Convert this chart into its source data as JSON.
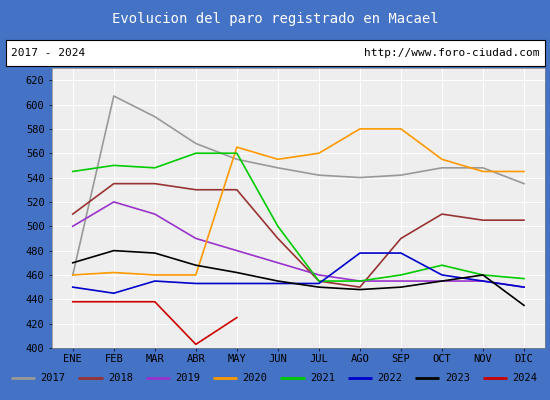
{
  "title": "Evolucion del paro registrado en Macael",
  "title_bgcolor": "#5b9bd5",
  "title_color": "white",
  "subtitle_left": "2017 - 2024",
  "subtitle_right": "http://www.foro-ciudad.com",
  "months": [
    "ENE",
    "FEB",
    "MAR",
    "ABR",
    "MAY",
    "JUN",
    "JUL",
    "AGO",
    "SEP",
    "OCT",
    "NOV",
    "DIC"
  ],
  "ylim": [
    400,
    630
  ],
  "yticks": [
    400,
    420,
    440,
    460,
    480,
    500,
    520,
    540,
    560,
    580,
    600,
    620
  ],
  "series": {
    "2017": {
      "color": "#999999",
      "data": [
        460,
        607,
        590,
        568,
        555,
        548,
        542,
        540,
        542,
        548,
        548,
        535
      ]
    },
    "2018": {
      "color": "#993333",
      "data": [
        510,
        535,
        535,
        530,
        530,
        490,
        455,
        450,
        490,
        510,
        505,
        505
      ]
    },
    "2019": {
      "color": "#9933cc",
      "data": [
        500,
        520,
        510,
        490,
        480,
        470,
        460,
        455,
        455,
        455,
        455,
        450
      ]
    },
    "2020": {
      "color": "#ff9900",
      "data": [
        460,
        462,
        460,
        460,
        565,
        555,
        560,
        580,
        580,
        555,
        545,
        545
      ]
    },
    "2021": {
      "color": "#00cc00",
      "data": [
        545,
        550,
        548,
        560,
        560,
        500,
        455,
        455,
        460,
        468,
        460,
        457
      ]
    },
    "2022": {
      "color": "#0000cc",
      "data": [
        450,
        445,
        455,
        453,
        453,
        453,
        453,
        478,
        478,
        460,
        455,
        450
      ]
    },
    "2023": {
      "color": "#000000",
      "data": [
        470,
        480,
        478,
        468,
        462,
        455,
        450,
        448,
        450,
        455,
        460,
        435
      ]
    },
    "2024": {
      "color": "#cc0000",
      "data": [
        438,
        438,
        438,
        403,
        425,
        null,
        null,
        null,
        null,
        null,
        null,
        null
      ]
    }
  }
}
